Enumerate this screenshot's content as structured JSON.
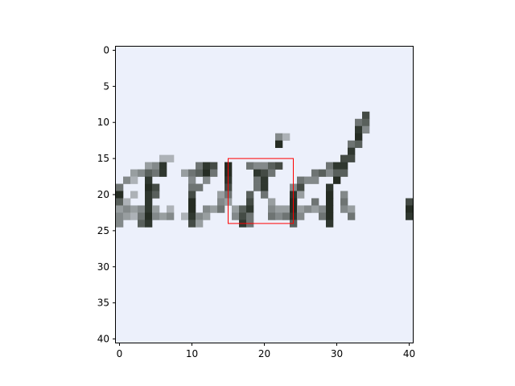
{
  "figure": {
    "image_size_cells": 41,
    "background_color": "#ecf0fb",
    "ink_color": "#1a2218",
    "x_ticks": [
      "0",
      "10",
      "20",
      "30",
      "40"
    ],
    "y_ticks": [
      "0",
      "5",
      "10",
      "15",
      "20",
      "25",
      "30",
      "35",
      "40"
    ],
    "x_tick_values": [
      0,
      10,
      20,
      30,
      40
    ],
    "y_tick_values": [
      0,
      5,
      10,
      15,
      20,
      25,
      30,
      35,
      40
    ],
    "highlight_box": {
      "x0": 15,
      "y0": 15,
      "x1": 24,
      "y1": 24,
      "color": "#ff0000"
    }
  }
}
